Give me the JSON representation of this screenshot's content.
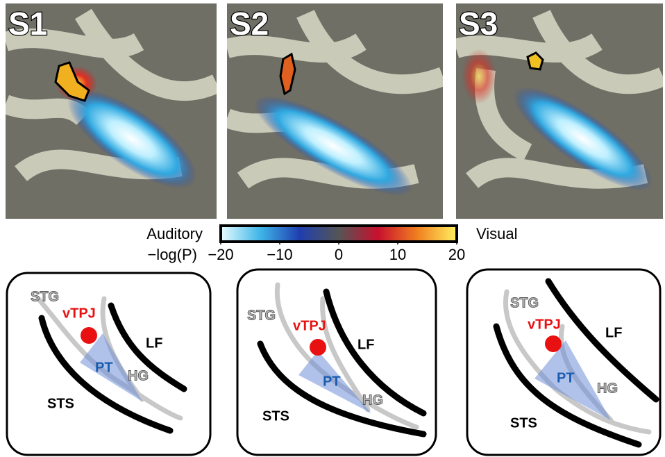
{
  "panels": [
    {
      "label": "S1"
    },
    {
      "label": "S2"
    },
    {
      "label": "S3"
    }
  ],
  "colorbar": {
    "left_label": "Auditory",
    "right_label": "Visual",
    "axis_label": "−log(P)",
    "lim": [
      -20,
      20
    ],
    "ticks": [
      {
        "value": -20,
        "label": "−20"
      },
      {
        "value": -10,
        "label": "−10"
      },
      0,
      10,
      20
    ],
    "colors": [
      "#e8fbff",
      "#3fb6e8",
      "#1f3fb0",
      "#555555",
      "#c8102e",
      "#f08020",
      "#fff060"
    ]
  },
  "diagrams": [
    {
      "labels": {
        "stg": "STG",
        "vtpj": "vTPJ",
        "lf": "LF",
        "pt": "PT",
        "hg": "HG",
        "sts": "STS"
      }
    },
    {
      "labels": {
        "stg": "STG",
        "vtpj": "vTPJ",
        "lf": "LF",
        "pt": "PT",
        "hg": "HG",
        "sts": "STS"
      }
    },
    {
      "labels": {
        "stg": "STG",
        "vtpj": "vTPJ",
        "lf": "LF",
        "pt": "PT",
        "hg": "HG",
        "sts": "STS"
      }
    }
  ]
}
